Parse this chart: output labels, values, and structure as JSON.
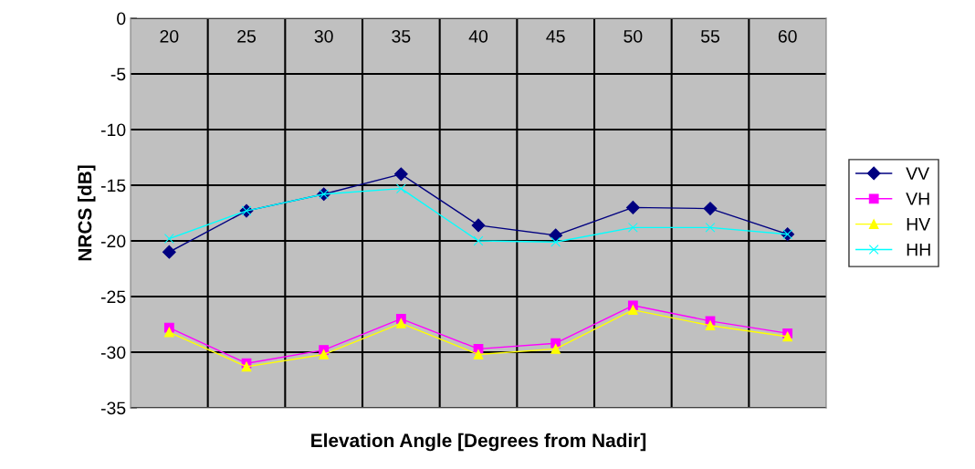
{
  "chart_data": {
    "type": "line",
    "xlabel": "Elevation Angle [Degrees from Nadir]",
    "ylabel": "NRCS [dB]",
    "categories": [
      "20",
      "25",
      "30",
      "35",
      "40",
      "45",
      "50",
      "55",
      "60"
    ],
    "series": [
      {
        "name": "VV",
        "color": "#000080",
        "marker": "diamond",
        "values": [
          -21,
          -17.3,
          -15.8,
          -14,
          -18.6,
          -19.5,
          -17,
          -17.1,
          -19.4
        ]
      },
      {
        "name": "VH",
        "color": "#ff00ff",
        "marker": "square",
        "values": [
          -27.8,
          -31,
          -29.8,
          -27,
          -29.7,
          -29.2,
          -25.8,
          -27.2,
          -28.3
        ]
      },
      {
        "name": "HV",
        "color": "#ffff00",
        "marker": "triangle",
        "values": [
          -28.2,
          -31.3,
          -30.2,
          -27.4,
          -30.2,
          -29.7,
          -26.2,
          -27.6,
          -28.6
        ]
      },
      {
        "name": "HH",
        "color": "#00ffff",
        "marker": "cross",
        "values": [
          -19.8,
          -17.3,
          -15.8,
          -15.3,
          -20,
          -20.1,
          -18.8,
          -18.8,
          -19.4
        ]
      }
    ],
    "ylim": [
      -35,
      0
    ],
    "yticks": [
      -35,
      -30,
      -25,
      -20,
      -15,
      -10,
      -5,
      0
    ],
    "grid": true,
    "legend": "right"
  }
}
